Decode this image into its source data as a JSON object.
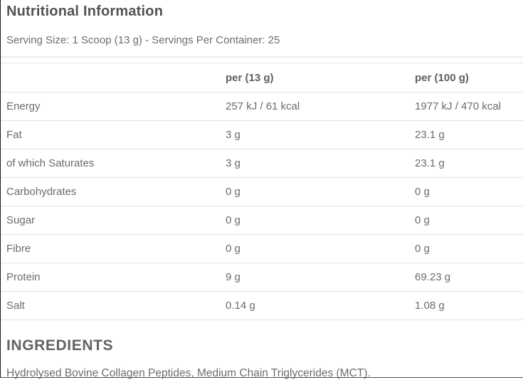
{
  "header": {
    "title": "Nutritional Information",
    "serving_info": "Serving Size: 1 Scoop (13 g) - Servings Per Container: 25"
  },
  "table": {
    "columns": {
      "nutrient": "",
      "per_serving": "per (13 g)",
      "per_100g": "per (100 g)"
    },
    "rows": [
      {
        "label": "Energy",
        "per_serving": "257 kJ / 61 kcal",
        "per_100g": "1977 kJ / 470 kcal"
      },
      {
        "label": "Fat",
        "per_serving": "3 g",
        "per_100g": "23.1 g"
      },
      {
        "label": "of which Saturates",
        "per_serving": "3 g",
        "per_100g": "23.1 g"
      },
      {
        "label": "Carbohydrates",
        "per_serving": "0 g",
        "per_100g": "0 g"
      },
      {
        "label": "Sugar",
        "per_serving": "0 g",
        "per_100g": "0 g"
      },
      {
        "label": "Fibre",
        "per_serving": "0 g",
        "per_100g": "0 g"
      },
      {
        "label": "Protein",
        "per_serving": "9 g",
        "per_100g": "69.23 g"
      },
      {
        "label": "Salt",
        "per_serving": "0.14 g",
        "per_100g": "1.08 g"
      }
    ]
  },
  "ingredients": {
    "heading": "INGREDIENTS",
    "text": "Hydrolysed Bovine Collagen Peptides, Medium Chain Triglycerides (MCT)."
  },
  "colors": {
    "title_text": "#535353",
    "body_text": "#6d6d6d",
    "divider": "#e0e0e0",
    "background": "#ffffff"
  }
}
